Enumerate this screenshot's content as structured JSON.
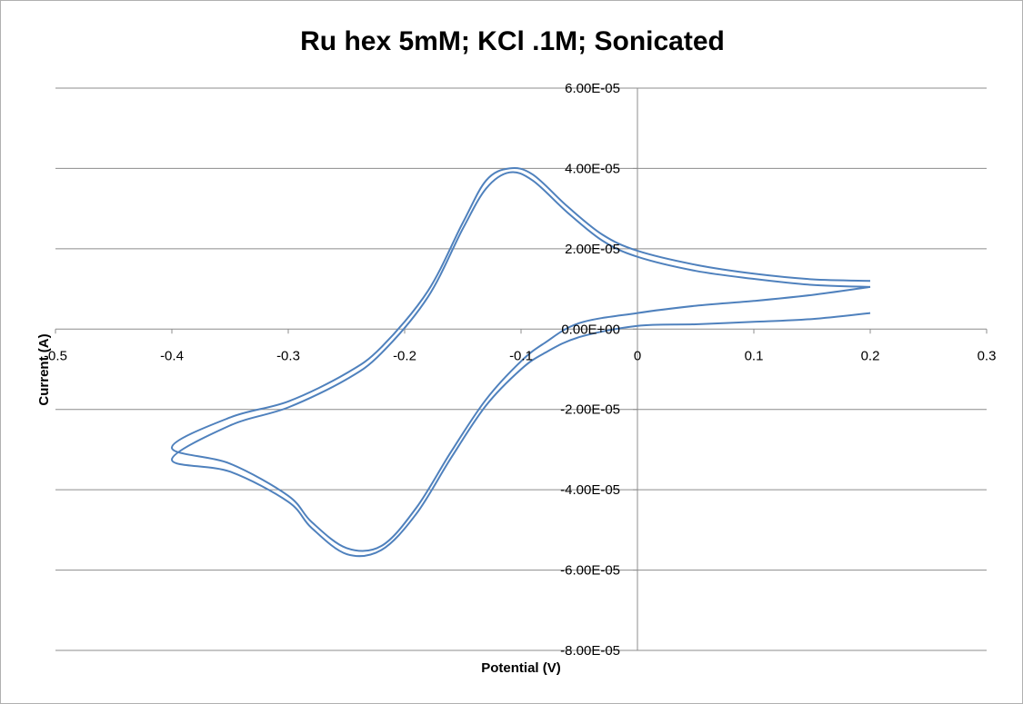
{
  "chart_data": {
    "type": "scatter",
    "title": "Ru hex 5mM; KCl .1M; Sonicated",
    "xlabel": "Potential (V)",
    "ylabel": "Current (A)",
    "xlim": [
      -0.5,
      0.3
    ],
    "ylim": [
      -8e-05,
      6e-05
    ],
    "x_ticks": [
      -0.5,
      -0.4,
      -0.3,
      -0.2,
      -0.1,
      0,
      0.1,
      0.2,
      0.3
    ],
    "x_tick_labels": [
      "-0.5",
      "-0.4",
      "-0.3",
      "-0.2",
      "-0.1",
      "0",
      "0.1",
      "0.2",
      "0.3"
    ],
    "y_ticks": [
      6e-05,
      4e-05,
      2e-05,
      0,
      -2e-05,
      -4e-05,
      -6e-05,
      -8e-05
    ],
    "y_tick_labels": [
      "6.00E-05",
      "4.00E-05",
      "2.00E-05",
      "0.00E+00",
      "-2.00E-05",
      "-4.00E-05",
      "-6.00E-05",
      "-8.00E-05"
    ],
    "grid": "horizontal",
    "line_color": "#4f81bd",
    "series": [
      {
        "x": [
          0.2,
          0.15,
          0.1,
          0.05,
          0.0,
          -0.05,
          -0.08,
          -0.1,
          -0.13,
          -0.16,
          -0.19,
          -0.22,
          -0.25,
          -0.28,
          -0.3,
          -0.35,
          -0.4,
          -0.35,
          -0.3,
          -0.25,
          -0.22,
          -0.18,
          -0.15,
          -0.13,
          -0.11,
          -0.09,
          -0.06,
          -0.03,
          0.0,
          0.05,
          0.1,
          0.15,
          0.2
        ],
        "y": [
          4e-06,
          2.5e-06,
          1.8e-06,
          1.2e-06,
          8e-07,
          -2e-06,
          -6e-06,
          -1e-05,
          -1.9e-05,
          -3.2e-05,
          -4.6e-05,
          -5.5e-05,
          -5.6e-05,
          -4.95e-05,
          -4.3e-05,
          -3.55e-05,
          -3.25e-05,
          -2.4e-05,
          -1.95e-05,
          -1.25e-05,
          -6e-06,
          8e-06,
          2.5e-05,
          3.5e-05,
          3.9e-05,
          3.7e-05,
          2.9e-05,
          2.2e-05,
          1.8e-05,
          1.45e-05,
          1.25e-05,
          1.1e-05,
          1.05e-05
        ]
      },
      {
        "x": [
          0.2,
          0.15,
          0.1,
          0.05,
          0.0,
          -0.05,
          -0.08,
          -0.1,
          -0.13,
          -0.16,
          -0.19,
          -0.22,
          -0.25,
          -0.28,
          -0.3,
          -0.35,
          -0.4,
          -0.35,
          -0.3,
          -0.25,
          -0.22,
          -0.18,
          -0.15,
          -0.13,
          -0.11,
          -0.09,
          -0.06,
          -0.03,
          0.0,
          0.05,
          0.1,
          0.15,
          0.2
        ],
        "y": [
          1.05e-05,
          8.5e-06,
          7e-06,
          5.8e-06,
          4e-06,
          1.5e-06,
          -3.5e-06,
          -8e-06,
          -1.75e-05,
          -3.05e-05,
          -4.45e-05,
          -5.4e-05,
          -5.45e-05,
          -4.8e-05,
          -4.15e-05,
          -3.35e-05,
          -2.95e-05,
          -2.2e-05,
          -1.8e-05,
          -1.1e-05,
          -4.5e-06,
          9.5e-06,
          2.65e-05,
          3.7e-05,
          4e-05,
          3.85e-05,
          3.05e-05,
          2.35e-05,
          1.95e-05,
          1.6e-05,
          1.38e-05,
          1.24e-05,
          1.2e-05
        ]
      }
    ]
  }
}
